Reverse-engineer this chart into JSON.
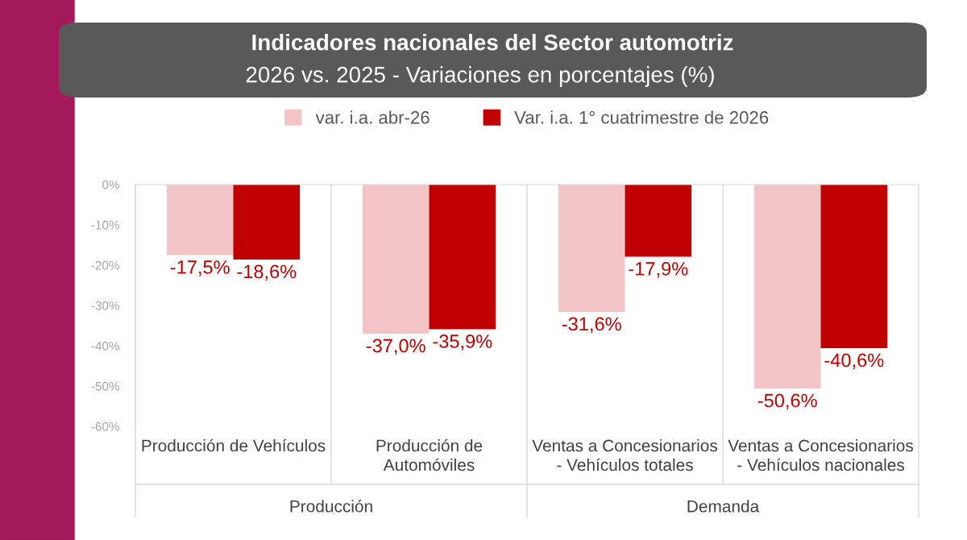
{
  "chart_data": {
    "type": "bar",
    "title": "Indicadores nacionales del Sector automotriz",
    "subtitle": "2026 vs. 2025 - Variaciones en porcentajes (%)",
    "categories": [
      "Producción de Vehículos",
      "Producción de\nAutomóviles",
      "Ventas a Concesionarios\n- Vehículos totales",
      "Ventas a Concesionarios\n- Vehículos nacionales"
    ],
    "series": [
      {
        "name": "var. i.a. abr-26",
        "color": "#f2c4c6",
        "values": [
          -17.5,
          -37.0,
          -31.6,
          -50.6
        ],
        "value_labels": [
          "-17,5%",
          "-37,0%",
          "-31,6%",
          "-50,6%"
        ]
      },
      {
        "name": "Var. i.a. 1° cuatrimestre de 2026",
        "color": "#c00000",
        "values": [
          -18.6,
          -35.9,
          -17.9,
          -40.6
        ],
        "value_labels": [
          "-18,6%",
          "-35,9%",
          "-17,9%",
          "-40,6%"
        ]
      }
    ],
    "ylim": [
      -60,
      0
    ],
    "yticks": [
      {
        "value": 0,
        "label": "0%"
      },
      {
        "value": -10,
        "label": "-10%"
      },
      {
        "value": -20,
        "label": "-20%"
      },
      {
        "value": -30,
        "label": "-30%"
      },
      {
        "value": -40,
        "label": "-40%"
      },
      {
        "value": -50,
        "label": "-50%"
      },
      {
        "value": -60,
        "label": "-60%"
      }
    ],
    "annotations": [
      "Producción",
      "Demanda"
    ],
    "legend": "top",
    "grid": false
  }
}
